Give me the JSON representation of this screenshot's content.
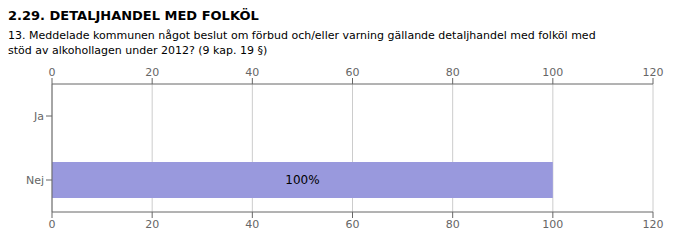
{
  "chart_data": {
    "type": "bar",
    "orientation": "horizontal",
    "title": "2.29. DETALJHANDEL MED FOLKÖL",
    "subtitle": "13. Meddelade kommunen något beslut om förbud och/eller varning gällande detaljhandel med folköl med\nstöd av alkohollagen under 2012? (9 kap. 19 §)",
    "categories": [
      "Nej",
      "Ja"
    ],
    "values": [
      100,
      0
    ],
    "value_labels": [
      "100%",
      null
    ],
    "data_labels": true,
    "color": "#9999dd",
    "xlim": [
      0,
      120
    ],
    "xticks": [
      0,
      20,
      40,
      60,
      80,
      100,
      120
    ],
    "grid": true
  }
}
